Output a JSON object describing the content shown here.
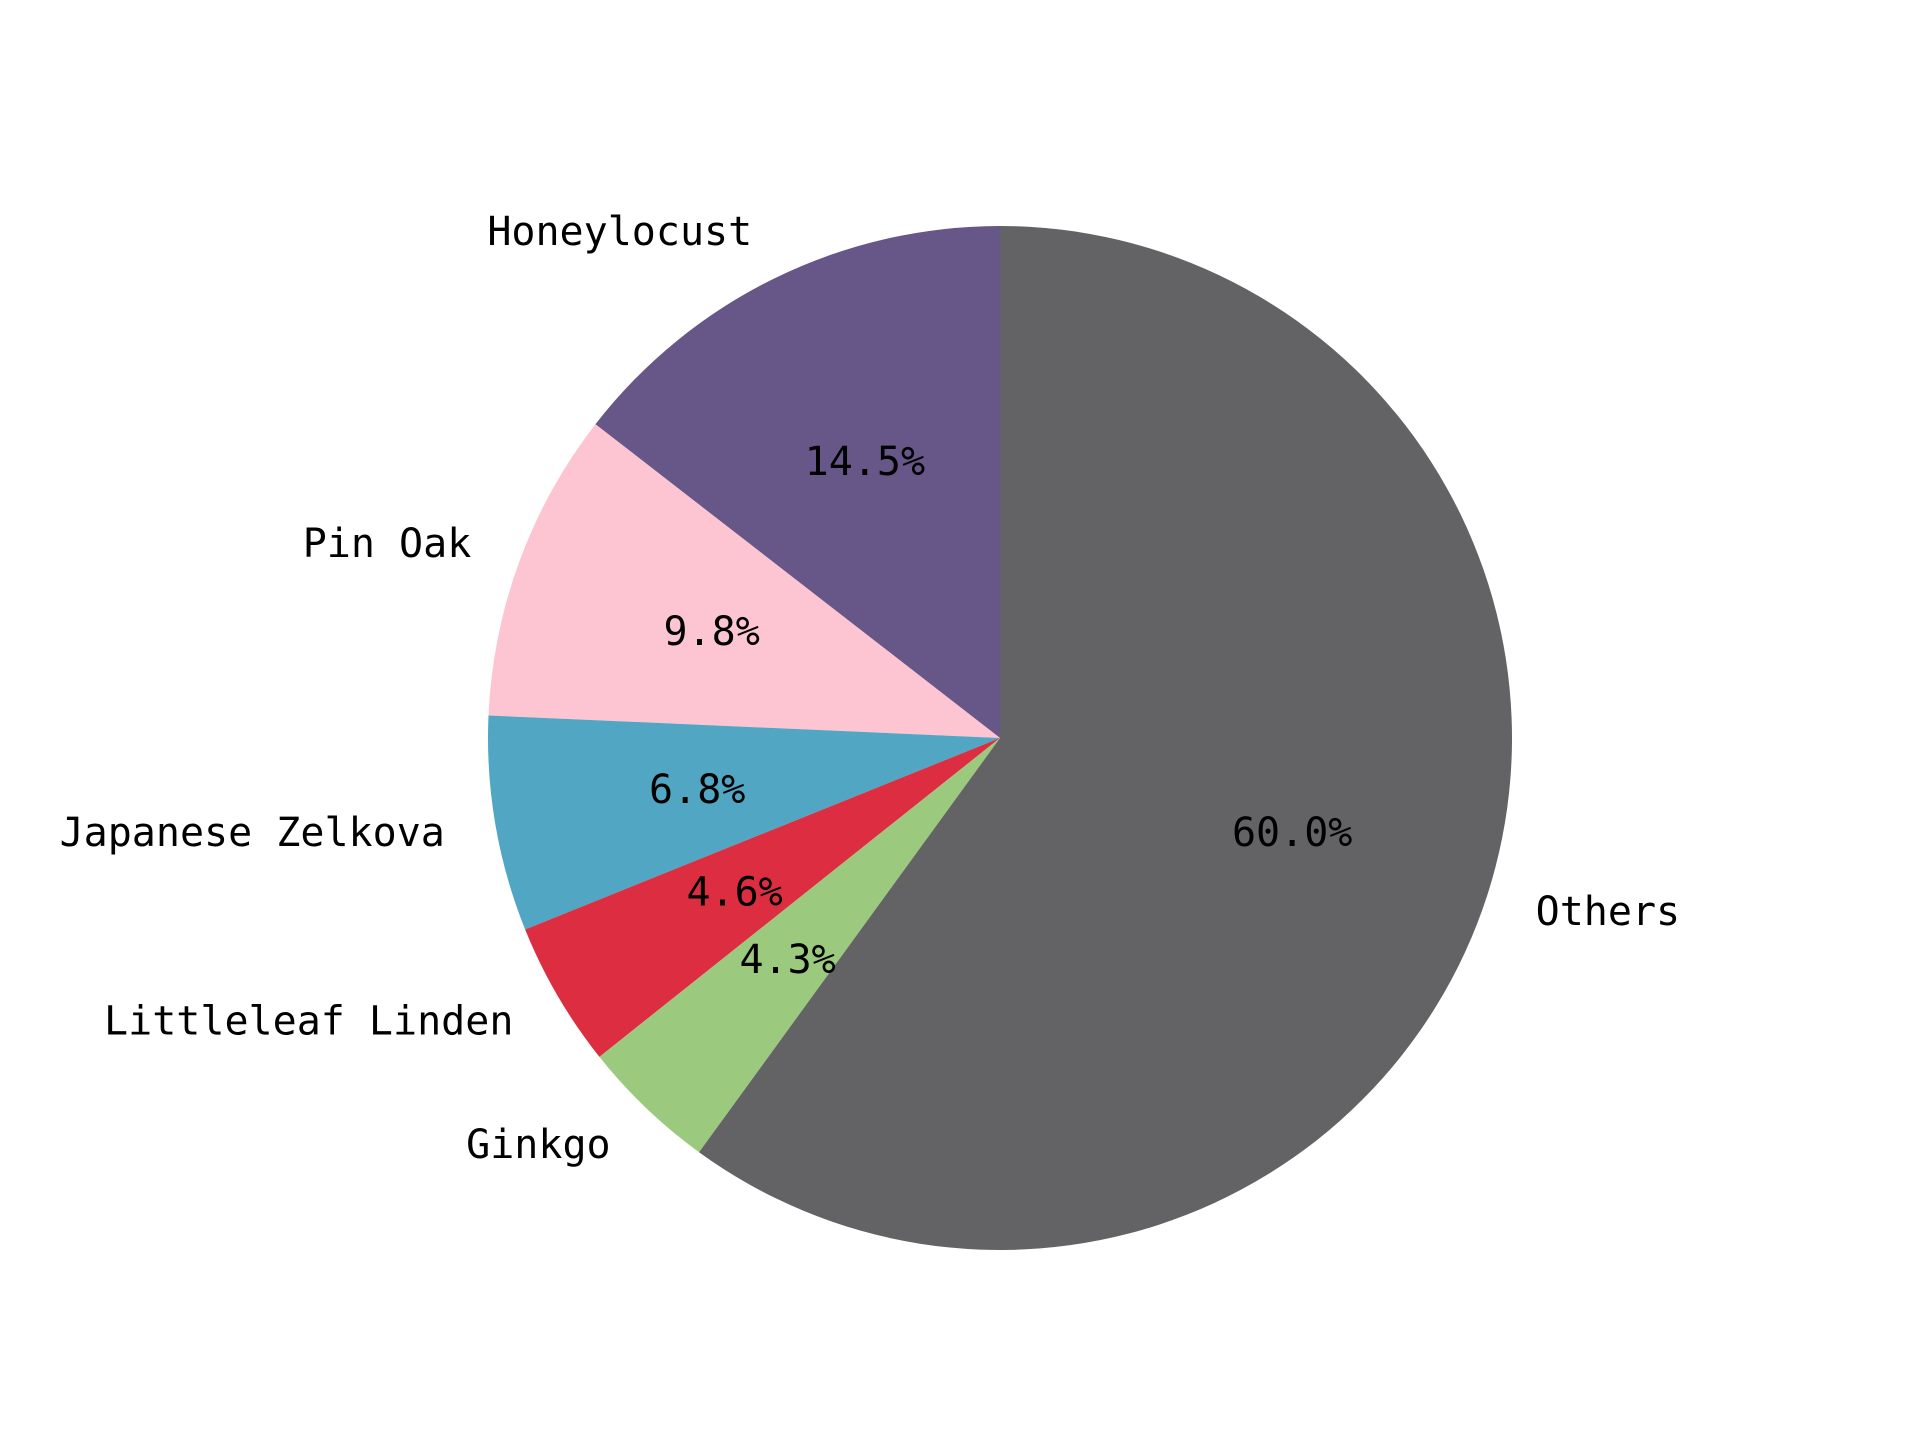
{
  "chart_data": {
    "type": "pie",
    "title": "",
    "start_angle_deg": 90,
    "direction": "counterclockwise",
    "slices": [
      {
        "label": "Honeylocust",
        "value": 14.5,
        "pct_label": "14.5%",
        "color": "#665788"
      },
      {
        "label": "Pin Oak",
        "value": 9.8,
        "pct_label": "9.8%",
        "color": "#fdc4d2"
      },
      {
        "label": "Japanese Zelkova",
        "value": 6.8,
        "pct_label": "6.8%",
        "color": "#51a6c4"
      },
      {
        "label": "Littleleaf Linden",
        "value": 4.6,
        "pct_label": "4.6%",
        "color": "#dc2e40"
      },
      {
        "label": "Ginkgo",
        "value": 4.3,
        "pct_label": "4.3%",
        "color": "#9bca7e"
      },
      {
        "label": "Others",
        "value": 60.0,
        "pct_label": "60.0%",
        "color": "#636265"
      }
    ]
  }
}
